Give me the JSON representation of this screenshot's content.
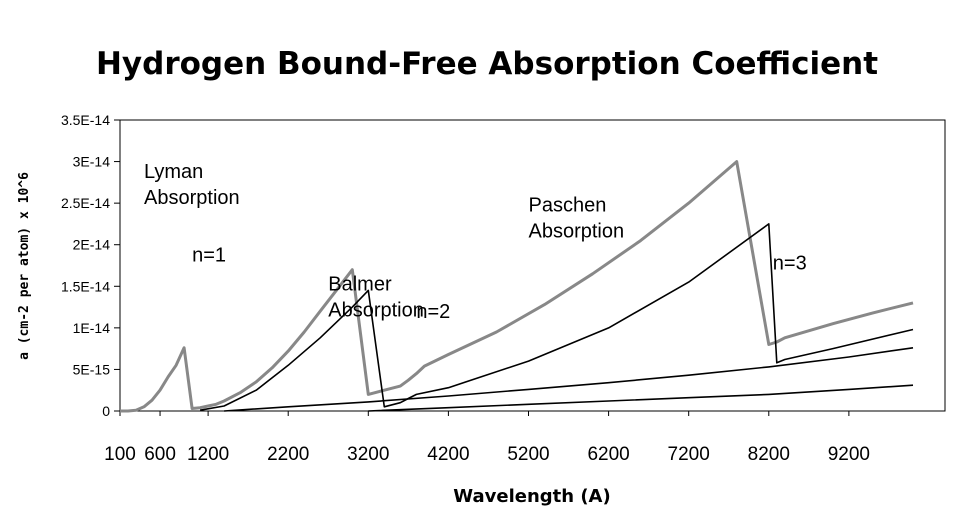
{
  "chart_data": {
    "type": "line",
    "title": "Hydrogen Bound-Free Absorption Coefficient",
    "xlabel": "Wavelength (A)",
    "ylabel": "a (cm-2 per atom) x 10^6",
    "x_ticks": [
      "100",
      "600",
      "1200",
      "2200",
      "3200",
      "4200",
      "5200",
      "6200",
      "7200",
      "8200",
      "9200"
    ],
    "y_ticks": [
      "0",
      "5E-15",
      "1E-14",
      "1.5E-14",
      "2E-14",
      "2.5E-14",
      "3E-14",
      "3.5E-14"
    ],
    "ylim": [
      0,
      3.5e-14
    ],
    "grid": false,
    "series": [
      {
        "color": "#888888",
        "x": [
          "100",
          "200",
          "300",
          "400",
          "500",
          "600",
          "700",
          "800",
          "900",
          "1000",
          "1100",
          "1200",
          "1300",
          "1400",
          "1600",
          "1800",
          "2000",
          "2200",
          "2400",
          "2600",
          "2800",
          "3000",
          "3200",
          "3400",
          "3600",
          "3700",
          "3800",
          "3900",
          "4200",
          "4800",
          "5400",
          "6000",
          "6600",
          "7200",
          "7800",
          "8200",
          "8300",
          "8400",
          "9000",
          "9500",
          "10000"
        ],
        "y": [
          0,
          0,
          1e-16,
          5e-16,
          1.3e-15,
          2.5e-15,
          4.1e-15,
          5.5e-15,
          7.6e-15,
          3e-16,
          4e-16,
          6e-16,
          8e-16,
          1.2e-15,
          2.2e-15,
          3.5e-15,
          5.2e-15,
          7.2e-15,
          9.5e-15,
          1.2e-14,
          1.45e-14,
          1.7e-14,
          2e-15,
          2.5e-15,
          3e-15,
          3.7e-15,
          4.5e-15,
          5.4e-15,
          6.8e-15,
          9.5e-15,
          1.28e-14,
          1.65e-14,
          2.05e-14,
          2.5e-14,
          3e-14,
          8e-15,
          8.3e-15,
          8.8e-15,
          1.05e-14,
          1.18e-14,
          1.3e-14
        ]
      },
      {
        "color": "#000000",
        "x": [
          "1100",
          "1400",
          "1800",
          "2200",
          "2600",
          "3000",
          "3200",
          "3400",
          "3600",
          "3700",
          "3800",
          "4200",
          "5200",
          "6200",
          "7200",
          "8200",
          "8300",
          "8400",
          "9000",
          "10000"
        ],
        "y": [
          1e-16,
          6e-16,
          2.5e-15,
          5.5e-15,
          8.8e-15,
          1.25e-14,
          1.45e-14,
          5e-16,
          1e-15,
          1.5e-15,
          2e-15,
          2.8e-15,
          6e-15,
          1e-14,
          1.55e-14,
          2.25e-14,
          5.8e-15,
          6.2e-15,
          7.5e-15,
          9.8e-15
        ]
      },
      {
        "color": "#000000",
        "x": [
          "1400",
          "2200",
          "3200",
          "4200",
          "5200",
          "6200",
          "7200",
          "8200",
          "9200",
          "10000"
        ],
        "y": [
          0,
          5e-16,
          1.1e-15,
          1.8e-15,
          2.6e-15,
          3.4e-15,
          4.3e-15,
          5.3e-15,
          6.5e-15,
          7.6e-15
        ]
      },
      {
        "color": "#000000",
        "x": [
          "3200",
          "4200",
          "5200",
          "6200",
          "7200",
          "8200",
          "9200",
          "10000"
        ],
        "y": [
          0,
          4e-16,
          8e-16,
          1.2e-15,
          1.6e-15,
          2e-15,
          2.6e-15,
          3.1e-15
        ]
      }
    ],
    "annotations": [
      {
        "lines": [
          "Lyman",
          "Absorption"
        ]
      },
      {
        "lines": [
          "n=1"
        ]
      },
      {
        "lines": [
          "Balmer",
          "Absorption"
        ]
      },
      {
        "lines": [
          "n=2"
        ]
      },
      {
        "lines": [
          "Paschen",
          "Absorption"
        ]
      },
      {
        "lines": [
          "n=3"
        ]
      }
    ]
  }
}
